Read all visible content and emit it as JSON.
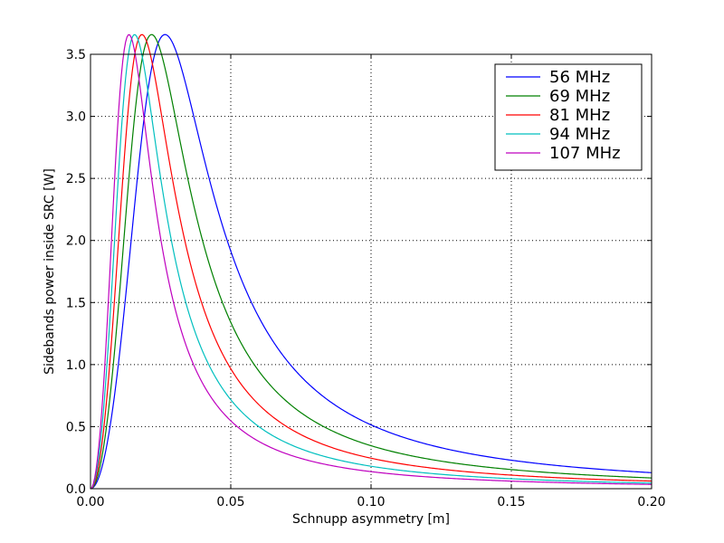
{
  "chart_data": {
    "type": "line",
    "title": "",
    "xlabel": "Schnupp asymmetry [m]",
    "ylabel": "Sidebands power inside SRC [W]",
    "xlim": [
      0.0,
      0.2
    ],
    "ylim": [
      0.0,
      3.5
    ],
    "xticks": [
      0.0,
      0.05,
      0.1,
      0.15,
      0.2
    ],
    "xtick_labels": [
      "0.00",
      "0.05",
      "0.10",
      "0.15",
      "0.20"
    ],
    "yticks": [
      0.0,
      0.5,
      1.0,
      1.5,
      2.0,
      2.5,
      3.0,
      3.5
    ],
    "ytick_labels": [
      "0.0",
      "0.5",
      "1.0",
      "1.5",
      "2.0",
      "2.5",
      "3.0",
      "3.5"
    ],
    "grid": true,
    "legend_position": "top-right",
    "series": [
      {
        "name": "56 MHz",
        "color": "#0000ff",
        "peak_x": 0.0316,
        "peak_y": 3.45
      },
      {
        "name": "69 MHz",
        "color": "#008000",
        "peak_x": 0.0259,
        "peak_y": 3.45
      },
      {
        "name": "81 MHz",
        "color": "#ff0000",
        "peak_x": 0.0218,
        "peak_y": 3.45
      },
      {
        "name": "94 MHz",
        "color": "#00bfbf",
        "peak_x": 0.0187,
        "peak_y": 3.45
      },
      {
        "name": "107 MHz",
        "color": "#bf00bf",
        "peak_x": 0.0163,
        "peak_y": 3.45
      }
    ]
  }
}
